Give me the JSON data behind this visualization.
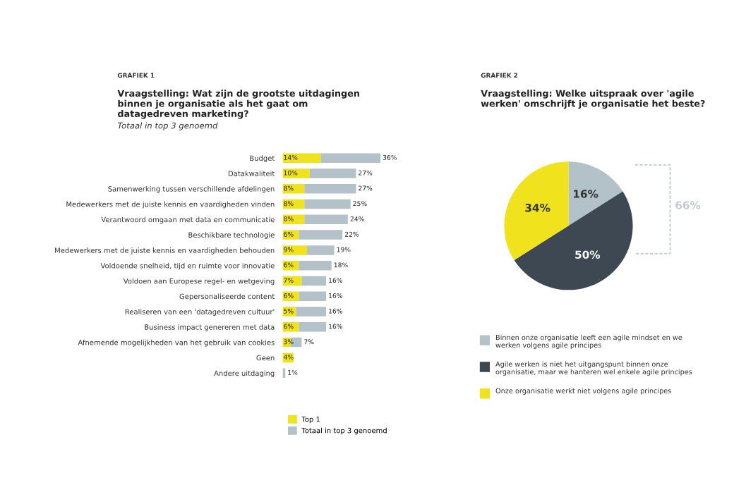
{
  "chart_data": [
    {
      "type": "bar",
      "orientation": "horizontal",
      "stacked": true,
      "title": "GRAFIEK 1",
      "subtitle": "Vraagstelling: Wat zijn de grootste uitdagingen binnen je organisatie als het gaat om datagedreven marketing?",
      "annotations": [
        "Totaal in top 3 genoemd"
      ],
      "categories": [
        "Budget",
        "Datakwaliteit",
        "Samenwerking tussen verschillende afdelingen",
        "Medewerkers met de juiste kennis en vaardigheden vinden",
        "Verantwoord omgaan met data en communicatie",
        "Beschikbare technologie",
        "Medewerkers met de juiste kennis en vaardigheden behouden",
        "Voldoende snelheid, tijd en ruimte voor innovatie",
        "Voldoen aan Europese regel- en wetgeving",
        "Gepersonaliseerde content",
        "Realiseren van een 'datagedreven cultuur'",
        "Business impact genereren met data",
        "Afnemende mogelijkheden van het gebruik van cookies",
        "Geen",
        "Andere uitdaging"
      ],
      "series": [
        {
          "name": "Top 1",
          "color": "#f0e21c",
          "values": [
            14,
            10,
            8,
            8,
            8,
            6,
            9,
            6,
            7,
            6,
            5,
            6,
            3,
            4,
            0
          ],
          "value_labels": [
            "14%",
            "10%",
            "8%",
            "8%",
            "8%",
            "6%",
            "9%",
            "6%",
            "7%",
            "6%",
            "5%",
            "6%",
            "3%",
            "4%",
            null
          ]
        },
        {
          "name": "Totaal in top 3 genoemd",
          "color": "#b3c1c9",
          "values": [
            22,
            17,
            19,
            17,
            16,
            16,
            10,
            12,
            9,
            10,
            11,
            10,
            4,
            0,
            1
          ]
        }
      ],
      "totals": [
        "36%",
        "27%",
        "27%",
        "25%",
        "24%",
        "22%",
        "19%",
        "18%",
        "16%",
        "16%",
        "16%",
        "16%",
        "7%",
        null,
        "1%"
      ],
      "legend": "bottom"
    },
    {
      "type": "pie",
      "title": "GRAFIEK 2",
      "subtitle": "Vraagstelling: Welke uitspraak over 'agile werken' omschrijft je organisatie het beste?",
      "categories": [
        "Binnen onze organisatie leeft een agile mindset en we werken volgens agile principes",
        "Agile werken is niet het uitgangspunt binnen onze organisatie, maar we hanteren wel enkele agile principes",
        "Onze organisatie werkt niet volgens agile principes"
      ],
      "values": [
        16,
        50,
        34
      ],
      "value_labels": [
        "16%",
        "50%",
        "34%"
      ],
      "colors": [
        "#b3c1c9",
        "#3e4852",
        "#f0e21c"
      ],
      "annotations": [
        "66%"
      ],
      "legend": "bottom"
    }
  ]
}
